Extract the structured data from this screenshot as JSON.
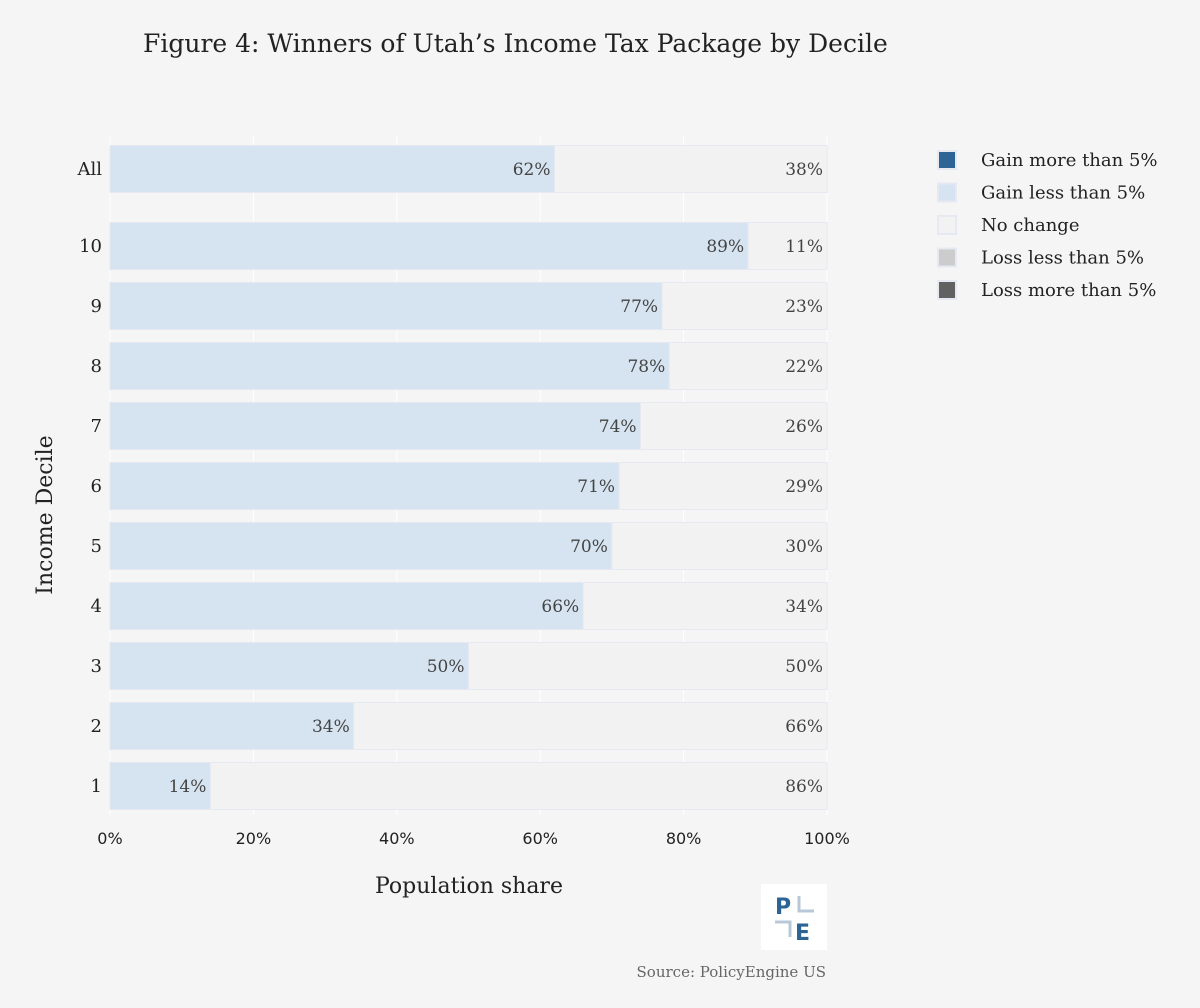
{
  "chart_data": {
    "type": "bar",
    "orientation": "horizontal",
    "stacked": true,
    "title": "Figure 4: Winners of Utah’s Income Tax Package by Decile",
    "xlabel": "Population share",
    "ylabel": "Income Decile",
    "xlim": [
      0,
      100
    ],
    "x_ticks": [
      "0%",
      "20%",
      "40%",
      "60%",
      "80%",
      "100%"
    ],
    "x_tick_values": [
      0,
      20,
      40,
      60,
      80,
      100
    ],
    "categories": [
      "All",
      "10",
      "9",
      "8",
      "7",
      "6",
      "5",
      "4",
      "3",
      "2",
      "1"
    ],
    "series": [
      {
        "name": "Gain more than 5%",
        "color": "#2c6496",
        "values": [
          0,
          0,
          0,
          0,
          0,
          0,
          0,
          0,
          0,
          0,
          0
        ]
      },
      {
        "name": "Gain less than 5%",
        "color": "#d6e4f1",
        "values": [
          62,
          89,
          77,
          78,
          74,
          71,
          70,
          66,
          50,
          34,
          14
        ]
      },
      {
        "name": "No change",
        "color": "#f2f2f2",
        "values": [
          38,
          11,
          23,
          22,
          26,
          29,
          30,
          34,
          50,
          66,
          86
        ]
      },
      {
        "name": "Loss less than 5%",
        "color": "#cccccc",
        "values": [
          0,
          0,
          0,
          0,
          0,
          0,
          0,
          0,
          0,
          0,
          0
        ]
      },
      {
        "name": "Loss more than 5%",
        "color": "#616161",
        "values": [
          0,
          0,
          0,
          0,
          0,
          0,
          0,
          0,
          0,
          0,
          0
        ]
      }
    ],
    "gain_labels": [
      "62%",
      "89%",
      "77%",
      "78%",
      "74%",
      "71%",
      "70%",
      "66%",
      "50%",
      "34%",
      "14%"
    ],
    "nochange_labels": [
      "38%",
      "11%",
      "23%",
      "22%",
      "26%",
      "29%",
      "30%",
      "34%",
      "50%",
      "66%",
      "86%"
    ],
    "legend": {
      "position": "right",
      "entries": [
        "Gain more than 5%",
        "Gain less than 5%",
        "No change",
        "Loss less than 5%",
        "Loss more than 5%"
      ],
      "colors": [
        "#2c6496",
        "#d6e4f1",
        "#f2f2f2",
        "#cccccc",
        "#616161"
      ]
    },
    "grid": true
  },
  "footer": {
    "source": "Source: PolicyEngine US",
    "logo_letters": [
      "P",
      "E"
    ]
  },
  "colors": {
    "background": "#f5f5f5",
    "gridline": "#ffffff",
    "bar_outline": "#e6e9f2",
    "accent": "#2c6496"
  }
}
